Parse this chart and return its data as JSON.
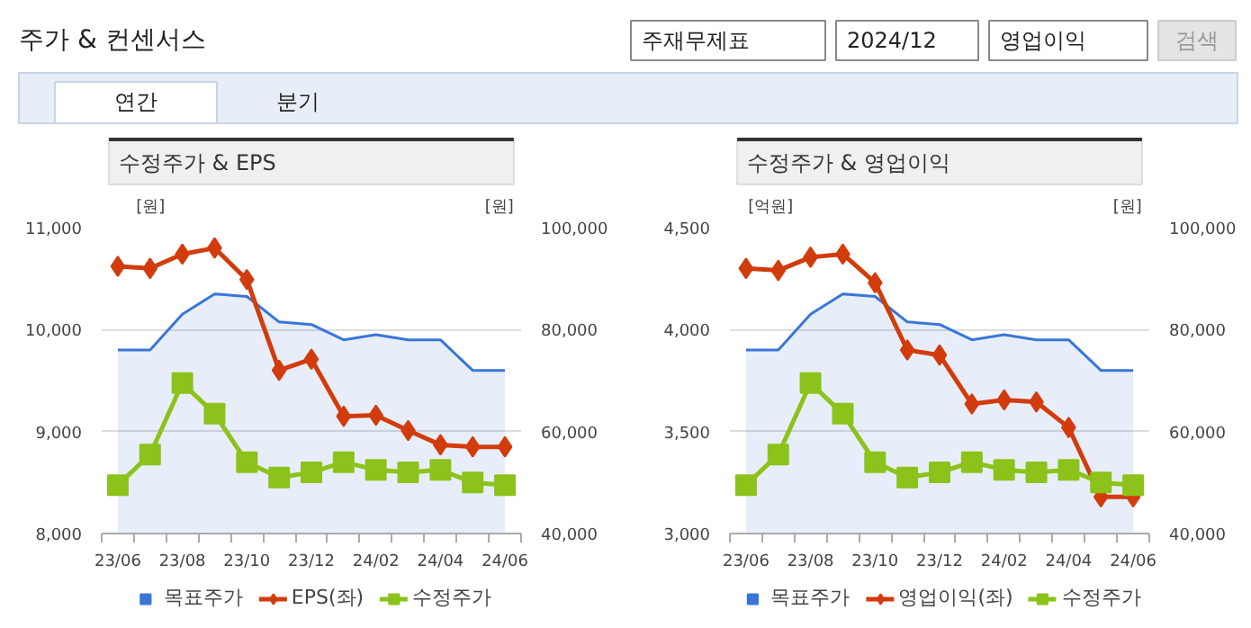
{
  "chart_data": [
    {
      "type": "other",
      "title": "주가 & 컨센서스",
      "annotations": [
        "주재무제표",
        "2024/12",
        "영업이익",
        "검색",
        "연간",
        "분기"
      ]
    },
    {
      "type": "line",
      "title": "수정주가 & EPS",
      "ylabel": "[원]",
      "y2label": "[원]",
      "categories": [
        "23/06",
        null,
        "23/08",
        null,
        "23/10",
        null,
        "23/12",
        null,
        "24/02",
        null,
        "24/04",
        null,
        "24/06"
      ],
      "ylim": [
        8000,
        11000
      ],
      "yticks": [
        {
          "value": 8000,
          "label": "8,000"
        },
        {
          "value": 9000,
          "label": "9,000"
        },
        {
          "value": 10000,
          "label": "10,000"
        },
        {
          "value": 11000,
          "label": "11,000"
        }
      ],
      "y2lim": [
        40000,
        100000
      ],
      "y2ticks": [
        {
          "value": 40000,
          "label": "40,000"
        },
        {
          "value": 60000,
          "label": "60,000"
        },
        {
          "value": 80000,
          "label": "80,000"
        },
        {
          "value": 100000,
          "label": "100,000"
        }
      ],
      "grid": "y",
      "legend": "bottom",
      "series": [
        {
          "name": "목표주가",
          "type": "area",
          "axis": "y2",
          "color": "#3a76d8",
          "values": [
            76000,
            76000,
            83000,
            87000,
            86500,
            81500,
            81000,
            78000,
            79000,
            78000,
            78000,
            72000,
            72000
          ]
        },
        {
          "name": "EPS(좌)",
          "type": "line",
          "color": "#d23c0c",
          "marker": "diamond",
          "values": [
            10620,
            10600,
            10740,
            10800,
            10490,
            9600,
            9710,
            9150,
            9160,
            9010,
            8870,
            8850,
            8850
          ]
        },
        {
          "name": "수정주가",
          "type": "line",
          "axis": "y2",
          "color": "#8cc21a",
          "marker": "square",
          "values": [
            49500,
            55500,
            69500,
            63500,
            54000,
            51000,
            52000,
            54000,
            52500,
            52000,
            52500,
            50000,
            49500
          ]
        }
      ]
    },
    {
      "type": "line",
      "title": "수정주가 & 영업이익",
      "ylabel": "[억원]",
      "y2label": "[원]",
      "categories": [
        "23/06",
        null,
        "23/08",
        null,
        "23/10",
        null,
        "23/12",
        null,
        "24/02",
        null,
        "24/04",
        null,
        "24/06"
      ],
      "ylim": [
        3000,
        4500
      ],
      "yticks": [
        {
          "value": 3000,
          "label": "3,000"
        },
        {
          "value": 3500,
          "label": "3,500"
        },
        {
          "value": 4000,
          "label": "4,000"
        },
        {
          "value": 4500,
          "label": "4,500"
        }
      ],
      "y2lim": [
        40000,
        100000
      ],
      "y2ticks": [
        {
          "value": 40000,
          "label": "40,000"
        },
        {
          "value": 60000,
          "label": "60,000"
        },
        {
          "value": 80000,
          "label": "80,000"
        },
        {
          "value": 100000,
          "label": "100,000"
        }
      ],
      "grid": "y",
      "legend": "bottom",
      "series": [
        {
          "name": "목표주가",
          "type": "area",
          "axis": "y2",
          "color": "#3a76d8",
          "values": [
            76000,
            76000,
            83000,
            87000,
            86500,
            81500,
            81000,
            78000,
            79000,
            78000,
            78000,
            72000,
            72000
          ]
        },
        {
          "name": "영업이익(좌)",
          "type": "line",
          "color": "#d23c0c",
          "marker": "diamond",
          "values": [
            4300,
            4290,
            4355,
            4370,
            4230,
            3900,
            3875,
            3635,
            3655,
            3645,
            3520,
            3180,
            3180
          ]
        },
        {
          "name": "수정주가",
          "type": "line",
          "axis": "y2",
          "color": "#8cc21a",
          "marker": "square",
          "values": [
            49500,
            55500,
            69500,
            63500,
            54000,
            51000,
            52000,
            54000,
            52500,
            52000,
            52500,
            50000,
            49500
          ]
        }
      ]
    }
  ]
}
